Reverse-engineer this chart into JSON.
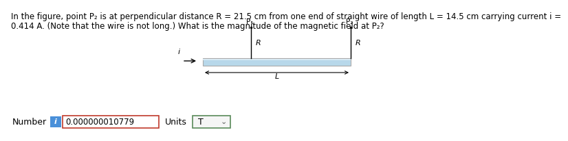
{
  "title_line1": "In the figure, point P₂ is at perpendicular distance R = 21.5 cm from one end of straight wire of length L = 14.5 cm carrying current i =",
  "title_line2": "0.414 A. (Note that the wire is not long.) What is the magnitude of the magnetic field at P₂?",
  "title_fontsize": 8.5,
  "bg_color": "#ffffff",
  "number_label": "Number",
  "number_value": "0.000000010779",
  "units_label": "Units",
  "units_value": "T",
  "info_btn_color": "#4a90d9",
  "input_box_border": "#c0392b",
  "units_box_border": "#5a8a5a",
  "wire_color": "#b8d8ea",
  "wire_border": "#aaaaaa",
  "wire_highlight": "#d8eaf4"
}
